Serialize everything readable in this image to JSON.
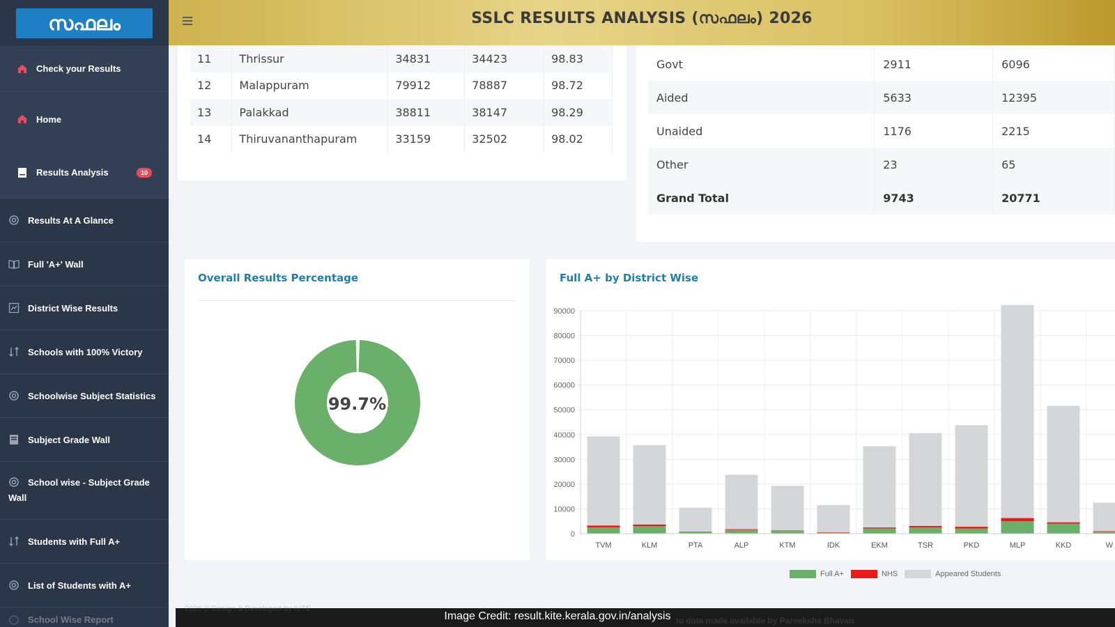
{
  "app": {
    "logo_text": "സഫലം",
    "title": "SSLC RESULTS ANALYSIS (സഫലം) 2026"
  },
  "sidebar": {
    "items": [
      {
        "label": "Check your Results",
        "icon": "home-icon"
      },
      {
        "label": "Home",
        "icon": "home-icon"
      },
      {
        "label": "Results Analysis",
        "icon": "document-icon",
        "badge": "10"
      },
      {
        "label": "Results At A Glance",
        "icon": "spiral-icon"
      },
      {
        "label": "Full 'A+' Wall",
        "icon": "book-icon"
      },
      {
        "label": "District Wise Results",
        "icon": "chart-icon"
      },
      {
        "label": "Schools with 100% Victory",
        "icon": "sort-icon"
      },
      {
        "label": "Schoolwise Subject Statistics",
        "icon": "spiral-icon"
      },
      {
        "label": "Subject Grade Wall",
        "icon": "document-icon"
      },
      {
        "label": "School wise - Subject Grade Wall",
        "icon": "spiral-icon"
      },
      {
        "label": "Students with Full A+",
        "icon": "sort-icon"
      },
      {
        "label": "List of Students with A+",
        "icon": "spiral-icon"
      },
      {
        "label": "School Wise Report",
        "icon": "spiral-icon"
      }
    ]
  },
  "district_table": {
    "rows": [
      {
        "no": "11",
        "district": "Thrissur",
        "appeared": "34831",
        "passed": "34423",
        "percent": "98.83"
      },
      {
        "no": "12",
        "district": "Malappuram",
        "appeared": "79912",
        "passed": "78887",
        "percent": "98.72"
      },
      {
        "no": "13",
        "district": "Palakkad",
        "appeared": "38811",
        "passed": "38147",
        "percent": "98.29"
      },
      {
        "no": "14",
        "district": "Thiruvananthapuram",
        "appeared": "33159",
        "passed": "32502",
        "percent": "98.02"
      }
    ]
  },
  "management_table": {
    "rows": [
      {
        "type": "Govt",
        "a": "2911",
        "b": "6096"
      },
      {
        "type": "Aided",
        "a": "5633",
        "b": "12395"
      },
      {
        "type": "Unaided",
        "a": "1176",
        "b": "2215"
      },
      {
        "type": "Other",
        "a": "23",
        "b": "65"
      },
      {
        "type": "Grand Total",
        "a": "9743",
        "b": "20771"
      }
    ]
  },
  "overall": {
    "title": "Overall Results Percentage",
    "value_label": "99.7%",
    "pass_fraction": 0.997
  },
  "district_chart": {
    "title": "Full A+ by District Wise",
    "legend": [
      "Full A+",
      "NHS",
      "Appeared Students"
    ]
  },
  "chart_data": {
    "type": "bar",
    "title": "Full A+ by District Wise",
    "categories": [
      "TVM",
      "KLM",
      "PTA",
      "ALP",
      "KTM",
      "IDK",
      "EKM",
      "TSR",
      "PKD",
      "MLP",
      "KKD",
      "W"
    ],
    "series": [
      {
        "name": "Full A+",
        "color": "#6ab06a",
        "values": [
          2500,
          3000,
          600,
          1500,
          1100,
          400,
          2100,
          2500,
          2100,
          5000,
          4000,
          800
        ]
      },
      {
        "name": "NHS",
        "color": "#e81b1b",
        "values": [
          800,
          700,
          200,
          300,
          200,
          150,
          400,
          600,
          700,
          1300,
          600,
          200
        ]
      },
      {
        "name": "Appeared Students",
        "color": "#d5d6da",
        "values": [
          36000,
          32000,
          9700,
          22000,
          18000,
          11000,
          32800,
          37500,
          41000,
          86000,
          47000,
          11500
        ]
      }
    ],
    "ylim": [
      0,
      90000
    ],
    "yticks": [
      0,
      10000,
      20000,
      30000,
      40000,
      50000,
      60000,
      70000,
      80000,
      90000
    ],
    "legend_position": "bottom",
    "grid": true
  },
  "footer": {
    "copyright": "2026 © Design & Developed by KITE",
    "note": "to data made available by Pareeksha Bhavan",
    "credit": "Image Credit: result.kite.kerala.gov.in/analysis"
  },
  "colors": {
    "sidebar": "#2b3648",
    "accent": "#1e7fa8",
    "success": "#6ab06a",
    "danger": "#e81b1b"
  }
}
